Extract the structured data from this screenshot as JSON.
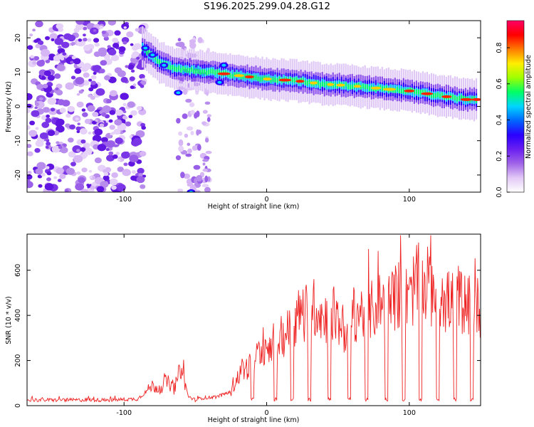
{
  "title": "S196.2025.299.04.28.G12",
  "chart_data": [
    {
      "type": "heatmap",
      "xlabel": "Height of straight line (km)",
      "ylabel": "Frequency (Hz)",
      "xlim": [
        -168,
        150
      ],
      "ylim": [
        -25,
        25
      ],
      "xticks": [
        -100,
        0,
        100
      ],
      "yticks": [
        -20,
        -10,
        0,
        10,
        20
      ],
      "colorbar": {
        "label": "Normalized spectral amplitude",
        "range": [
          0,
          0.95
        ],
        "ticks": [
          "0.0",
          "0.2",
          "0.4",
          "0.6",
          "0.8"
        ],
        "colors": [
          "#ffffff",
          "#e3c9f7",
          "#a064e8",
          "#6a1ff0",
          "#2a00ff",
          "#0066ff",
          "#00d5ff",
          "#00ff66",
          "#9dff00",
          "#ffee00",
          "#ff7a00",
          "#ff0000",
          "#ff0066"
        ]
      },
      "ridge": [
        {
          "x": -87,
          "y": 17
        },
        {
          "x": -75,
          "y": 13
        },
        {
          "x": -65,
          "y": 11
        },
        {
          "x": -40,
          "y": 10
        },
        {
          "x": -20,
          "y": 9
        },
        {
          "x": 0,
          "y": 8
        },
        {
          "x": 20,
          "y": 7.5
        },
        {
          "x": 40,
          "y": 6.5
        },
        {
          "x": 60,
          "y": 6
        },
        {
          "x": 80,
          "y": 5.2
        },
        {
          "x": 100,
          "y": 4.5
        },
        {
          "x": 120,
          "y": 3.2
        },
        {
          "x": 140,
          "y": 2
        },
        {
          "x": 148,
          "y": 2
        }
      ],
      "noise_region_km": [
        -168,
        -85
      ]
    },
    {
      "type": "line",
      "xlabel": "Height of straight line (km)",
      "ylabel": "SNR (10 * v/v)",
      "xlim": [
        -168,
        150
      ],
      "ylim": [
        0,
        760
      ],
      "xticks": [
        -100,
        0,
        100
      ],
      "yticks": [
        0,
        200,
        400,
        600
      ],
      "color": "#ee2222",
      "series": [
        {
          "name": "SNR",
          "x": [
            -168,
            -140,
            -110,
            -90,
            -85,
            -80,
            -75,
            -70,
            -65,
            -60,
            -55,
            -50,
            -45,
            -40,
            -35,
            -30,
            -25,
            -20,
            -15,
            -10,
            -5,
            0,
            5,
            10,
            15,
            20,
            25,
            30,
            35,
            40,
            45,
            50,
            55,
            60,
            65,
            70,
            75,
            80,
            85,
            90,
            95,
            100,
            105,
            110,
            115,
            120,
            125,
            130,
            135,
            140,
            145,
            150
          ],
          "y": [
            25,
            25,
            25,
            30,
            60,
            90,
            70,
            110,
            70,
            170,
            40,
            25,
            35,
            35,
            40,
            50,
            60,
            130,
            160,
            190,
            240,
            260,
            280,
            300,
            330,
            380,
            420,
            400,
            450,
            380,
            430,
            370,
            330,
            400,
            420,
            400,
            430,
            460,
            450,
            480,
            500,
            460,
            560,
            520,
            500,
            520,
            460,
            460,
            480,
            440,
            450,
            430
          ]
        }
      ],
      "dips_km": [
        -10,
        6,
        18,
        30,
        44,
        58,
        70,
        84,
        96,
        108,
        120,
        132,
        144
      ]
    }
  ]
}
